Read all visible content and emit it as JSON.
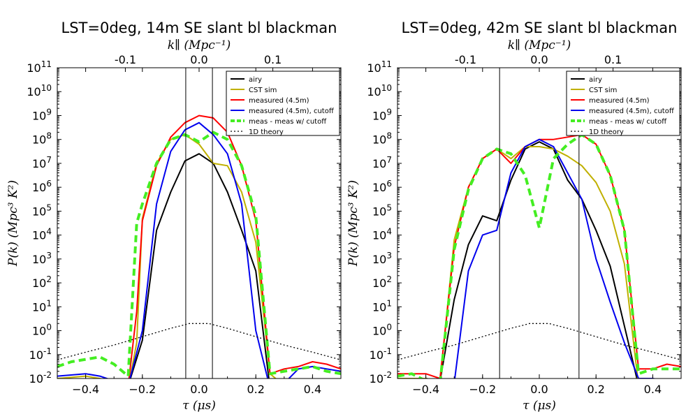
{
  "chart_data": [
    {
      "type": "line",
      "title": "LST=0deg, 14m SE slant bl blackman",
      "xlabel": "τ (μs)",
      "ylabel": "P(k)  (Mpc³ K²)",
      "top_xlabel": "k∥ (Mpc⁻¹)",
      "xlim": [
        -0.5,
        0.5
      ],
      "ylim_log10": [
        -2,
        11
      ],
      "x_ticks": [
        "−0.4",
        "−0.2",
        "0.0",
        "0.2",
        "0.4"
      ],
      "x_tick_values": [
        -0.4,
        -0.2,
        0.0,
        0.2,
        0.4
      ],
      "top_ticks": [
        "-0.1",
        "0.0",
        "0.1"
      ],
      "top_tick_values": [
        -0.26,
        0.0,
        0.26
      ],
      "vlines": [
        -0.047,
        0.047
      ],
      "series": [
        {
          "name": "airy",
          "color": "#000000",
          "style": "solid",
          "x": [
            -0.5,
            -0.35,
            -0.3,
            -0.25,
            -0.2,
            -0.15,
            -0.1,
            -0.05,
            0.0,
            0.05,
            0.1,
            0.15,
            0.2,
            0.25,
            0.3,
            0.35,
            0.4,
            0.45,
            0.5
          ],
          "y": [
            -2.2,
            -2.1,
            -2.2,
            -2.3,
            -0.4,
            4.2,
            5.8,
            7.1,
            7.4,
            7.0,
            5.8,
            4.2,
            2.5,
            -2.4,
            -2.3,
            -2.2,
            -2.2,
            -2.3,
            -2.3
          ]
        },
        {
          "name": "CST sim",
          "color": "#c0b000",
          "style": "solid",
          "x": [
            -0.5,
            -0.4,
            -0.35,
            -0.3,
            -0.25,
            -0.22,
            -0.2,
            -0.15,
            -0.1,
            -0.05,
            0.0,
            0.05,
            0.1,
            0.15,
            0.2,
            0.25,
            0.3,
            0.4,
            0.45,
            0.5
          ],
          "y": [
            -2.0,
            -1.9,
            -2.0,
            -2.2,
            -2.4,
            -0.5,
            4.7,
            7.0,
            8.0,
            8.2,
            7.8,
            7.0,
            6.9,
            5.8,
            3.7,
            -1.8,
            -2.3,
            -2.2,
            -2.2,
            -2.3
          ]
        },
        {
          "name": "measured (4.5m)",
          "color": "#ff0000",
          "style": "solid",
          "x": [
            -0.5,
            -0.45,
            -0.4,
            -0.35,
            -0.3,
            -0.25,
            -0.22,
            -0.2,
            -0.15,
            -0.1,
            -0.05,
            0.0,
            0.05,
            0.1,
            0.15,
            0.2,
            0.25,
            0.3,
            0.35,
            0.4,
            0.45,
            0.5
          ],
          "y": [
            -2.1,
            -2.1,
            -2.2,
            -2.2,
            -2.2,
            -2.3,
            0.8,
            4.6,
            6.9,
            8.1,
            8.7,
            9.0,
            8.9,
            8.3,
            6.9,
            4.6,
            -1.8,
            -1.6,
            -1.5,
            -1.3,
            -1.4,
            -1.6
          ]
        },
        {
          "name": "measured (4.5m), cutoff",
          "color": "#0000ee",
          "style": "solid",
          "x": [
            -0.5,
            -0.4,
            -0.35,
            -0.3,
            -0.25,
            -0.2,
            -0.15,
            -0.1,
            -0.05,
            0.0,
            0.05,
            0.1,
            0.15,
            0.2,
            0.25,
            0.3,
            0.35,
            0.4,
            0.45,
            0.5
          ],
          "y": [
            -1.9,
            -1.8,
            -1.9,
            -2.1,
            -2.3,
            0.0,
            5.3,
            7.5,
            8.4,
            8.7,
            8.2,
            7.4,
            5.3,
            0.0,
            -2.4,
            -2.2,
            -1.6,
            -1.5,
            -1.6,
            -1.7
          ]
        },
        {
          "name": "meas - meas w/ cutoff",
          "color": "#44ee22",
          "style": "dashed",
          "x": [
            -0.5,
            -0.45,
            -0.4,
            -0.35,
            -0.3,
            -0.25,
            -0.22,
            -0.2,
            -0.15,
            -0.1,
            -0.05,
            0.0,
            0.05,
            0.1,
            0.15,
            0.2,
            0.25,
            0.3,
            0.35,
            0.4,
            0.45,
            0.5
          ],
          "y": [
            -1.5,
            -1.3,
            -1.2,
            -1.1,
            -1.4,
            -1.9,
            4.5,
            5.3,
            7.0,
            8.0,
            8.2,
            7.9,
            8.3,
            8.0,
            6.9,
            4.8,
            -1.8,
            -1.7,
            -1.6,
            -1.5,
            -1.7,
            -1.8
          ]
        },
        {
          "name": "1D theory",
          "color": "#000000",
          "style": "dotted",
          "x": [
            -0.5,
            -0.4,
            -0.3,
            -0.2,
            -0.1,
            -0.05,
            -0.035,
            -0.03,
            0.03,
            0.035,
            0.05,
            0.1,
            0.2,
            0.3,
            0.4,
            0.5
          ],
          "y": [
            -1.22,
            -0.9,
            -0.6,
            -0.25,
            0.1,
            0.25,
            0.3,
            0.3,
            0.3,
            0.3,
            0.25,
            0.1,
            -0.25,
            -0.6,
            -0.9,
            -1.22
          ]
        }
      ]
    },
    {
      "type": "line",
      "title": "LST=0deg, 42m SE slant bl blackman",
      "xlabel": "τ (μs)",
      "ylabel": "P(k)  (Mpc³ K²)",
      "top_xlabel": "k∥ (Mpc⁻¹)",
      "xlim": [
        -0.5,
        0.5
      ],
      "ylim_log10": [
        -2,
        11
      ],
      "x_ticks": [
        "−0.4",
        "−0.2",
        "0.0",
        "0.2",
        "0.4"
      ],
      "x_tick_values": [
        -0.4,
        -0.2,
        0.0,
        0.2,
        0.4
      ],
      "top_ticks": [
        "-0.1",
        "0.0",
        "0.1"
      ],
      "top_tick_values": [
        -0.26,
        0.0,
        0.26
      ],
      "vlines": [
        -0.14,
        0.14
      ],
      "series": [
        {
          "name": "airy",
          "color": "#000000",
          "style": "solid",
          "x": [
            -0.5,
            -0.4,
            -0.35,
            -0.3,
            -0.25,
            -0.2,
            -0.15,
            -0.1,
            -0.05,
            0.0,
            0.05,
            0.1,
            0.15,
            0.2,
            0.25,
            0.3,
            0.35,
            0.4,
            0.45,
            0.5
          ],
          "y": [
            -2.0,
            -2.0,
            -2.1,
            1.3,
            3.6,
            4.8,
            4.6,
            6.3,
            7.6,
            7.9,
            7.6,
            6.3,
            5.5,
            4.2,
            2.7,
            0.2,
            -2.3,
            -2.3,
            -2.2,
            -2.2
          ]
        },
        {
          "name": "CST sim",
          "color": "#c0b000",
          "style": "solid",
          "x": [
            -0.5,
            -0.4,
            -0.35,
            -0.3,
            -0.25,
            -0.2,
            -0.15,
            -0.1,
            -0.05,
            0.0,
            0.05,
            0.1,
            0.15,
            0.2,
            0.25,
            0.3,
            0.35,
            0.4,
            0.45,
            0.5
          ],
          "y": [
            -2.0,
            -2.0,
            -2.1,
            3.8,
            6.0,
            7.2,
            7.6,
            7.2,
            7.7,
            7.7,
            7.6,
            7.3,
            6.9,
            6.2,
            5.0,
            2.8,
            -2.3,
            -2.3,
            -2.2,
            -2.2
          ]
        },
        {
          "name": "measured (4.5m)",
          "color": "#ff0000",
          "style": "solid",
          "x": [
            -0.5,
            -0.4,
            -0.35,
            -0.3,
            -0.25,
            -0.2,
            -0.15,
            -0.1,
            -0.05,
            0.0,
            0.05,
            0.1,
            0.15,
            0.2,
            0.25,
            0.3,
            0.35,
            0.4,
            0.45,
            0.5
          ],
          "y": [
            -1.8,
            -1.8,
            -2.0,
            3.5,
            6.0,
            7.2,
            7.6,
            7.0,
            7.7,
            8.0,
            8.0,
            8.1,
            8.2,
            7.8,
            6.5,
            4.2,
            -1.6,
            -1.6,
            -1.4,
            -1.5
          ]
        },
        {
          "name": "measured (4.5m), cutoff",
          "color": "#0000ee",
          "style": "solid",
          "x": [
            -0.5,
            -0.4,
            -0.35,
            -0.3,
            -0.25,
            -0.2,
            -0.15,
            -0.1,
            -0.05,
            0.0,
            0.05,
            0.1,
            0.15,
            0.2,
            0.25,
            0.3,
            0.35,
            0.4,
            0.45,
            0.5
          ],
          "y": [
            -2.2,
            -2.2,
            -2.2,
            -2.2,
            2.5,
            4.0,
            4.2,
            6.6,
            7.7,
            8.0,
            7.7,
            6.6,
            5.5,
            3.0,
            1.2,
            -0.5,
            -2.0,
            -2.0,
            -2.1,
            -2.2
          ]
        },
        {
          "name": "meas - meas w/ cutoff",
          "color": "#44ee22",
          "style": "dashed",
          "x": [
            -0.5,
            -0.45,
            -0.4,
            -0.35,
            -0.3,
            -0.25,
            -0.2,
            -0.15,
            -0.1,
            -0.05,
            0.0,
            0.05,
            0.1,
            0.15,
            0.2,
            0.25,
            0.3,
            0.35,
            0.4,
            0.45,
            0.5
          ],
          "y": [
            -1.9,
            -1.8,
            -2.1,
            -2.2,
            3.4,
            5.9,
            7.2,
            7.6,
            7.4,
            6.5,
            4.3,
            7.2,
            7.8,
            8.2,
            7.8,
            6.5,
            4.2,
            -1.8,
            -1.6,
            -1.6,
            -1.6
          ]
        },
        {
          "name": "1D theory",
          "color": "#000000",
          "style": "dotted",
          "x": [
            -0.5,
            -0.4,
            -0.3,
            -0.2,
            -0.1,
            -0.05,
            -0.035,
            -0.03,
            0.03,
            0.035,
            0.05,
            0.1,
            0.2,
            0.3,
            0.4,
            0.5
          ],
          "y": [
            -1.22,
            -0.9,
            -0.6,
            -0.25,
            0.1,
            0.25,
            0.3,
            0.3,
            0.3,
            0.3,
            0.25,
            0.1,
            -0.25,
            -0.6,
            -0.9,
            -1.22
          ]
        }
      ]
    }
  ]
}
